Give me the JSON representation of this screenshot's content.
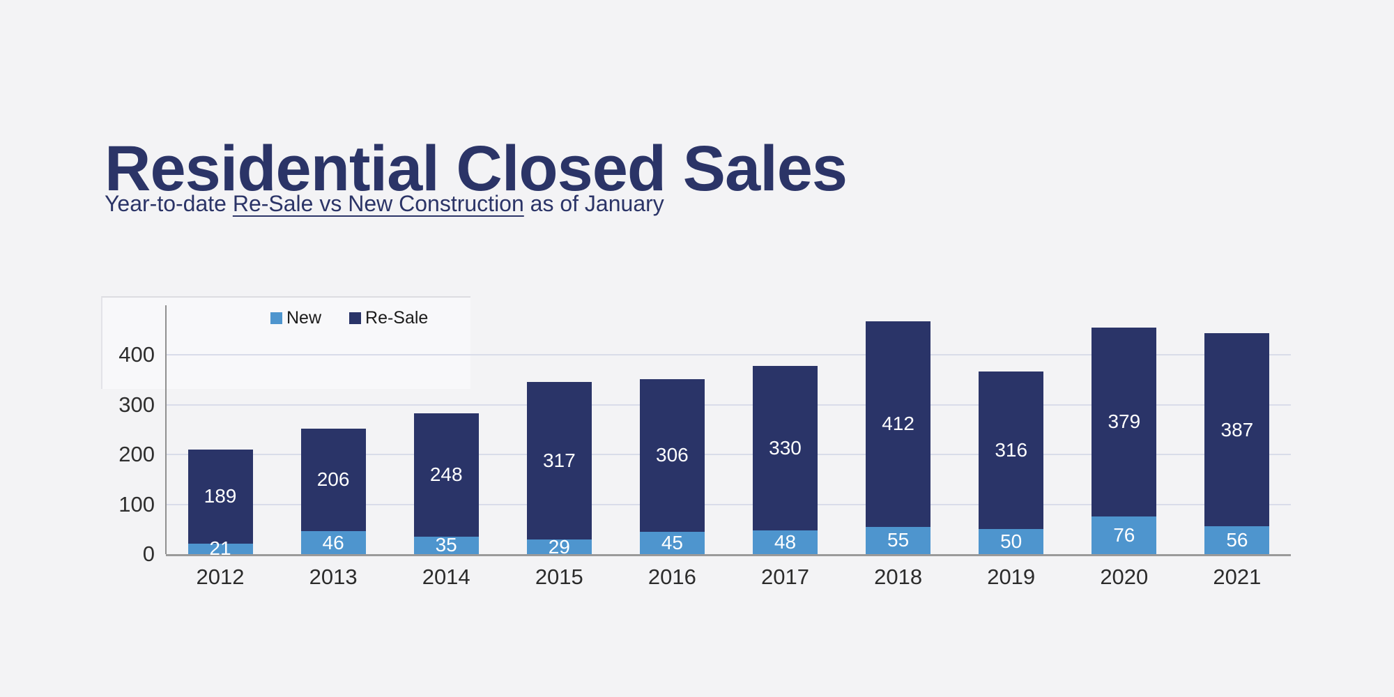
{
  "page": {
    "background_color": "#F3F3F5"
  },
  "header": {
    "title": "Residential Closed Sales",
    "subtitle_prefix": "Year-to-date ",
    "subtitle_underlined": "Re-Sale vs New Construction",
    "subtitle_suffix": " as of January",
    "text_color": "#2B3467"
  },
  "chart_data": {
    "type": "bar",
    "stacked": true,
    "title": "Residential Closed Sales",
    "subtitle": "Year-to-date Re-Sale vs New Construction as of January",
    "xlabel": "",
    "ylabel": "",
    "categories": [
      "2012",
      "2013",
      "2014",
      "2015",
      "2016",
      "2017",
      "2018",
      "2019",
      "2020",
      "2021"
    ],
    "series": [
      {
        "name": "New",
        "color": "#4E95CE",
        "values": [
          21,
          46,
          35,
          29,
          45,
          48,
          55,
          50,
          76,
          56
        ]
      },
      {
        "name": "Re-Sale",
        "color": "#2A3468",
        "values": [
          189,
          206,
          248,
          317,
          306,
          330,
          412,
          316,
          379,
          387
        ]
      }
    ],
    "totals": [
      210,
      252,
      283,
      346,
      351,
      378,
      467,
      366,
      455,
      443
    ],
    "ylim": [
      0,
      500
    ],
    "yticks": [
      0,
      100,
      200,
      300,
      400
    ],
    "grid": true,
    "legend_position": "top-left-inside",
    "value_labels": "inside-segments-white",
    "style": {
      "grid_color": "#D9DCE9",
      "axis_color": "#9A9A9A",
      "tick_label_color": "#2E2E2E",
      "value_label_color": "#FFFFFF",
      "legend_text_color": "#1B1B1B"
    }
  }
}
